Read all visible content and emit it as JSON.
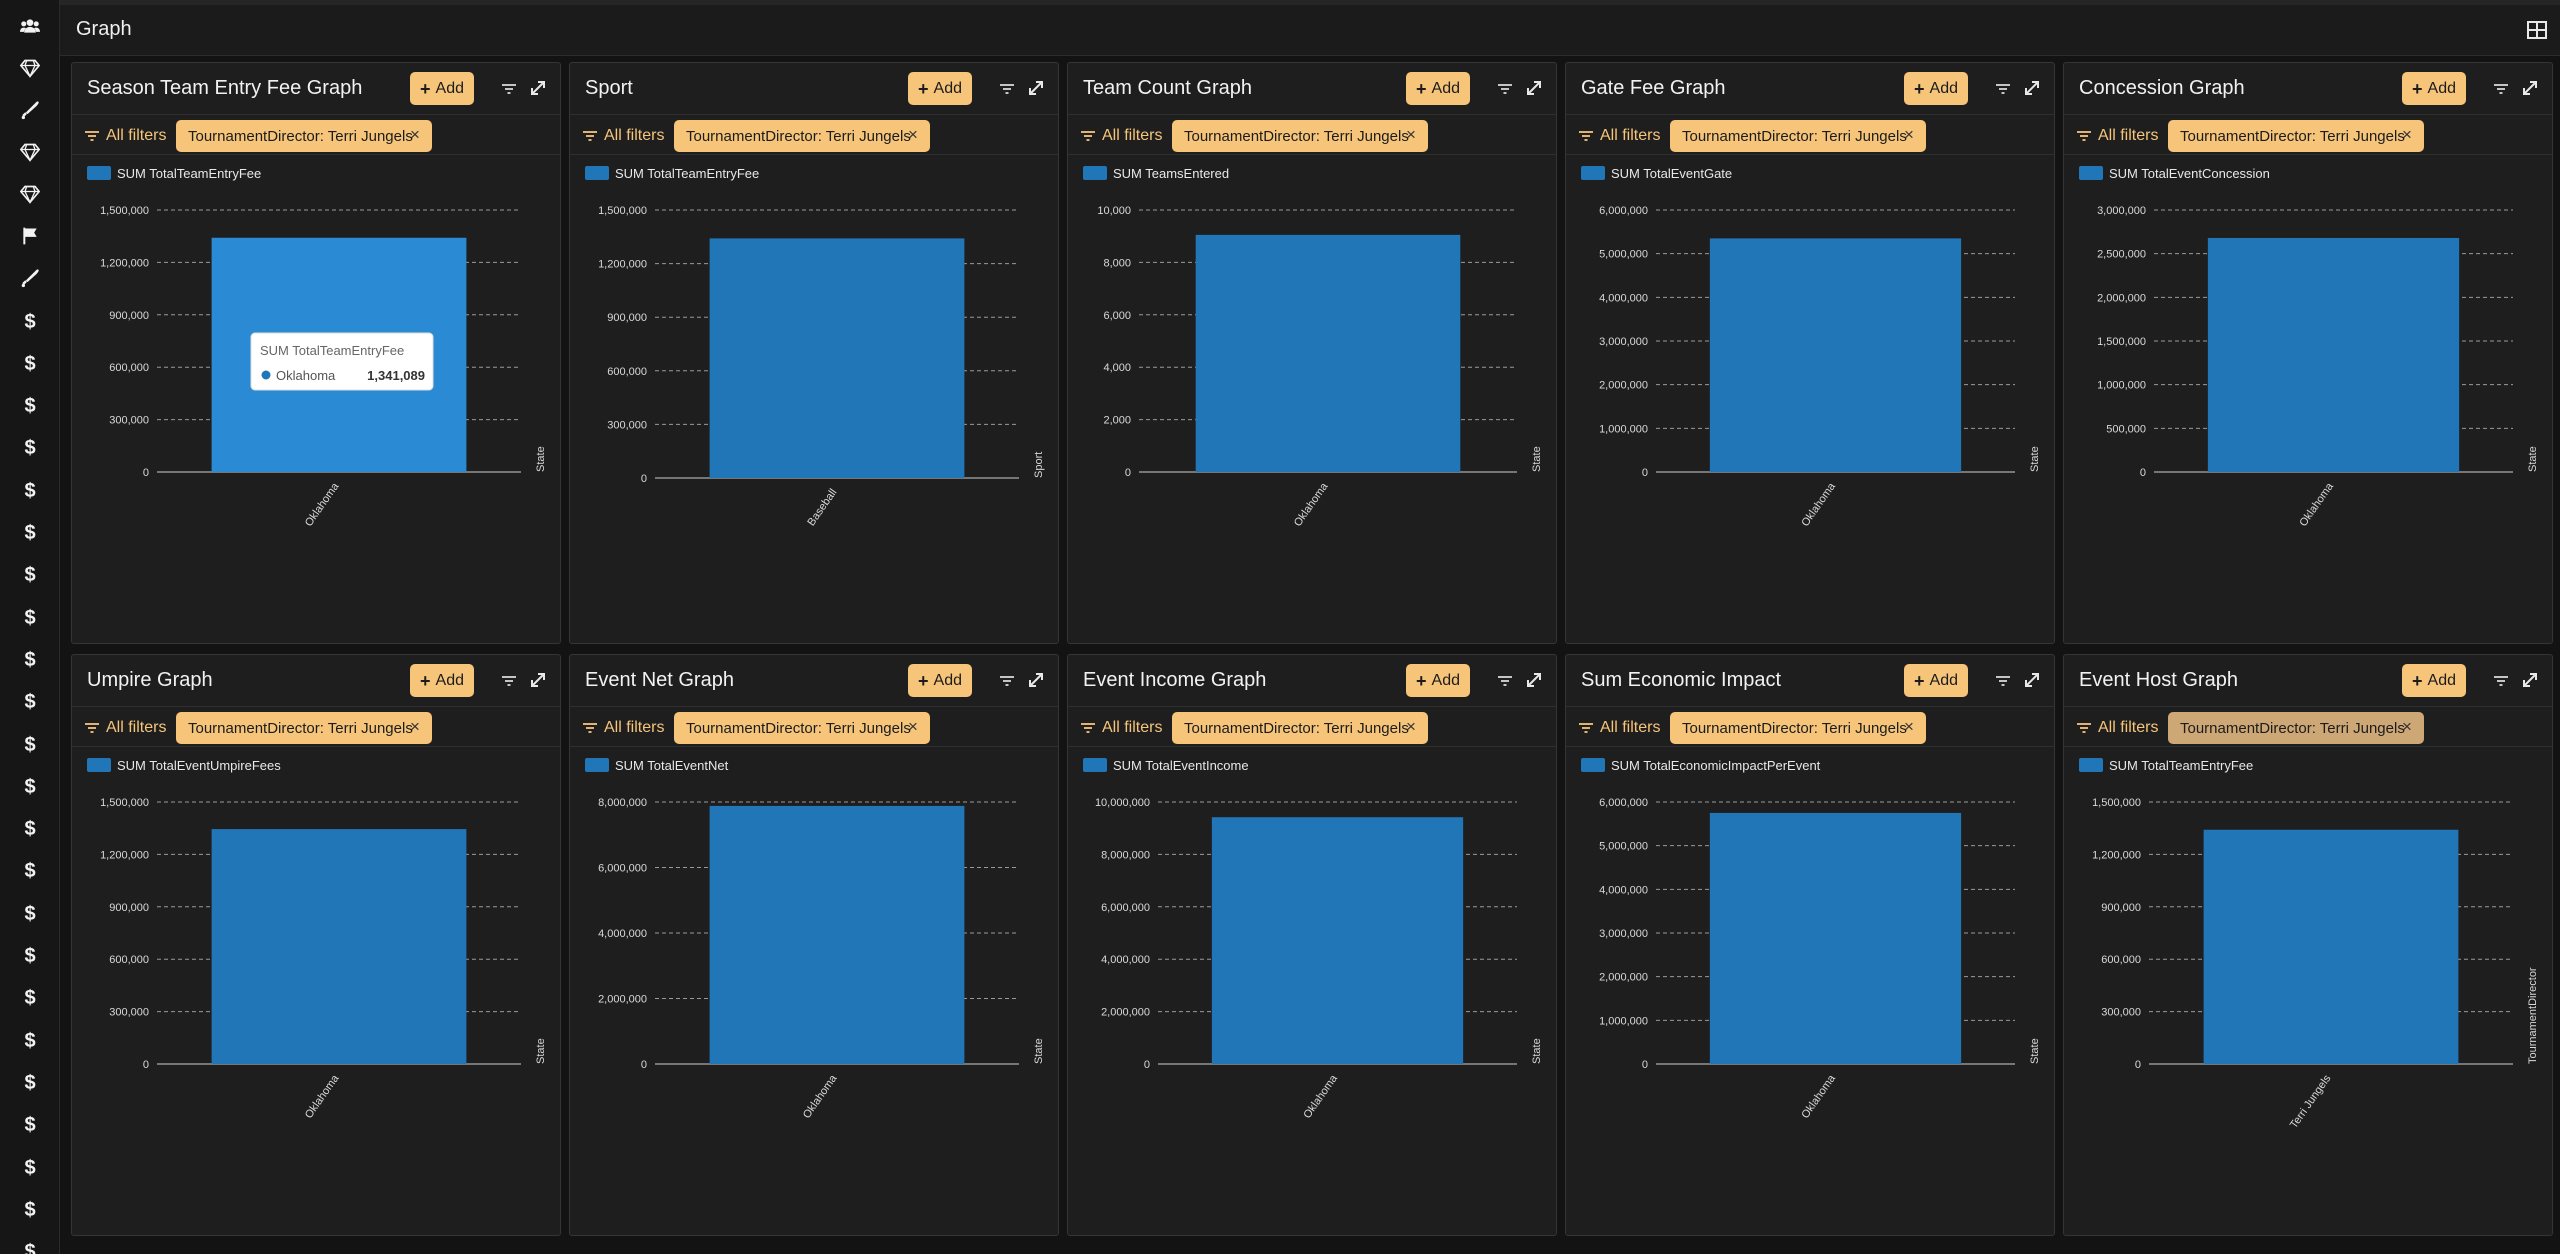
{
  "header": {
    "title": "Graph",
    "layout_icon": "grid-layout-icon"
  },
  "sidebar": {
    "items": [
      {
        "icon": "users-icon"
      },
      {
        "icon": "gem-icon"
      },
      {
        "icon": "baseball-bat-icon"
      },
      {
        "icon": "gem-icon"
      },
      {
        "icon": "gem-icon"
      },
      {
        "icon": "flag-icon"
      },
      {
        "icon": "baseball-bat-icon"
      },
      {
        "icon": "dollar-icon",
        "glyph": "$"
      },
      {
        "icon": "dollar-icon",
        "glyph": "$"
      },
      {
        "icon": "dollar-icon",
        "glyph": "$"
      },
      {
        "icon": "dollar-icon",
        "glyph": "$"
      },
      {
        "icon": "dollar-icon",
        "glyph": "$"
      },
      {
        "icon": "dollar-icon",
        "glyph": "$"
      },
      {
        "icon": "dollar-icon",
        "glyph": "$"
      },
      {
        "icon": "dollar-icon",
        "glyph": "$"
      },
      {
        "icon": "dollar-icon",
        "glyph": "$"
      },
      {
        "icon": "dollar-icon",
        "glyph": "$"
      },
      {
        "icon": "dollar-icon",
        "glyph": "$"
      },
      {
        "icon": "dollar-icon",
        "glyph": "$"
      },
      {
        "icon": "dollar-icon",
        "glyph": "$"
      },
      {
        "icon": "dollar-icon",
        "glyph": "$"
      },
      {
        "icon": "dollar-icon",
        "glyph": "$"
      },
      {
        "icon": "dollar-icon",
        "glyph": "$"
      },
      {
        "icon": "dollar-icon",
        "glyph": "$"
      },
      {
        "icon": "dollar-icon",
        "glyph": "$"
      },
      {
        "icon": "dollar-icon",
        "glyph": "$"
      },
      {
        "icon": "dollar-icon",
        "glyph": "$"
      },
      {
        "icon": "dollar-icon",
        "glyph": "$"
      },
      {
        "icon": "dollar-icon",
        "glyph": "$"
      },
      {
        "icon": "dollar-icon",
        "glyph": "$"
      }
    ]
  },
  "colors": {
    "accent": "#f6c57a",
    "bar": "#2176b8",
    "bar_hover": "#2a8ad4",
    "panel_bg": "#1e1e1e",
    "page_bg": "#131313"
  },
  "common": {
    "add_label": "Add",
    "all_filters_label": "All filters",
    "filter_chip_label": "TournamentDirector: Terri Jungels",
    "close_glyph": "×"
  },
  "panels": [
    {
      "title": "Season Team Entry Fee Graph",
      "tooltip": {
        "title": "SUM TotalTeamEntryFee",
        "label": "Oklahoma",
        "value": "1,341,089"
      },
      "chart_data": {
        "type": "bar",
        "legend": "SUM TotalTeamEntryFee",
        "categories": [
          "Oklahoma"
        ],
        "values": [
          1341089
        ],
        "ylim": [
          0,
          1500000
        ],
        "yticks": [
          0,
          300000,
          600000,
          900000,
          1200000,
          1500000
        ],
        "ytick_labels": [
          "0",
          "300,000",
          "600,000",
          "900,000",
          "1,200,000",
          "1,500,000"
        ],
        "xlabel": "State",
        "grid": true,
        "legend_position": "top-left"
      }
    },
    {
      "title": "Sport",
      "chart_data": {
        "type": "bar",
        "legend": "SUM TotalTeamEntryFee",
        "categories": [
          "Baseball"
        ],
        "values": [
          1341089
        ],
        "ylim": [
          0,
          1500000
        ],
        "yticks": [
          0,
          300000,
          600000,
          900000,
          1200000,
          1500000
        ],
        "ytick_labels": [
          "0",
          "300,000",
          "600,000",
          "900,000",
          "1,200,000",
          "1,500,000"
        ],
        "xlabel": "Sport",
        "grid": true,
        "legend_position": "top-left"
      }
    },
    {
      "title": "Team Count Graph",
      "chart_data": {
        "type": "bar",
        "legend": "SUM TeamsEntered",
        "categories": [
          "Oklahoma"
        ],
        "values": [
          9050
        ],
        "ylim": [
          0,
          10000
        ],
        "yticks": [
          0,
          2000,
          4000,
          6000,
          8000,
          10000
        ],
        "ytick_labels": [
          "0",
          "2,000",
          "4,000",
          "6,000",
          "8,000",
          "10,000"
        ],
        "xlabel": "State",
        "grid": true,
        "legend_position": "top-left"
      }
    },
    {
      "title": "Gate Fee Graph",
      "chart_data": {
        "type": "bar",
        "legend": "SUM TotalEventGate",
        "categories": [
          "Oklahoma"
        ],
        "values": [
          5350000
        ],
        "ylim": [
          0,
          6000000
        ],
        "yticks": [
          0,
          1000000,
          2000000,
          3000000,
          4000000,
          5000000,
          6000000
        ],
        "ytick_labels": [
          "0",
          "1,000,000",
          "2,000,000",
          "3,000,000",
          "4,000,000",
          "5,000,000",
          "6,000,000"
        ],
        "xlabel": "State",
        "grid": true,
        "legend_position": "top-left"
      }
    },
    {
      "title": "Concession Graph",
      "chart_data": {
        "type": "bar",
        "legend": "SUM TotalEventConcession",
        "categories": [
          "Oklahoma"
        ],
        "values": [
          2680000
        ],
        "ylim": [
          0,
          3000000
        ],
        "yticks": [
          0,
          500000,
          1000000,
          1500000,
          2000000,
          2500000,
          3000000
        ],
        "ytick_labels": [
          "0",
          "500,000",
          "1,000,000",
          "1,500,000",
          "2,000,000",
          "2,500,000",
          "3,000,000"
        ],
        "xlabel": "State",
        "grid": true,
        "legend_position": "top-left"
      }
    },
    {
      "title": "Umpire Graph",
      "chart_data": {
        "type": "bar",
        "legend": "SUM TotalEventUmpireFees",
        "categories": [
          "Oklahoma"
        ],
        "values": [
          1345000
        ],
        "ylim": [
          0,
          1500000
        ],
        "yticks": [
          0,
          300000,
          600000,
          900000,
          1200000,
          1500000
        ],
        "ytick_labels": [
          "0",
          "300,000",
          "600,000",
          "900,000",
          "1,200,000",
          "1,500,000"
        ],
        "xlabel": "State",
        "grid": true,
        "legend_position": "top-left"
      }
    },
    {
      "title": "Event Net Graph",
      "chart_data": {
        "type": "bar",
        "legend": "SUM TotalEventNet",
        "categories": [
          "Oklahoma"
        ],
        "values": [
          7880000
        ],
        "ylim": [
          0,
          8000000
        ],
        "yticks": [
          0,
          2000000,
          4000000,
          6000000,
          8000000
        ],
        "ytick_labels": [
          "0",
          "2,000,000",
          "4,000,000",
          "6,000,000",
          "8,000,000"
        ],
        "xlabel": "State",
        "grid": true,
        "legend_position": "top-left"
      }
    },
    {
      "title": "Event Income Graph",
      "chart_data": {
        "type": "bar",
        "legend": "SUM TotalEventIncome",
        "categories": [
          "Oklahoma"
        ],
        "values": [
          9420000
        ],
        "ylim": [
          0,
          10000000
        ],
        "yticks": [
          0,
          2000000,
          4000000,
          6000000,
          8000000,
          10000000
        ],
        "ytick_labels": [
          "0",
          "2,000,000",
          "4,000,000",
          "6,000,000",
          "8,000,000",
          "10,000,000"
        ],
        "xlabel": "State",
        "grid": true,
        "legend_position": "top-left"
      }
    },
    {
      "title": "Sum Economic Impact",
      "chart_data": {
        "type": "bar",
        "legend": "SUM TotalEconomicImpactPerEvent",
        "categories": [
          "Oklahoma"
        ],
        "values": [
          5750000
        ],
        "ylim": [
          0,
          6000000
        ],
        "yticks": [
          0,
          1000000,
          2000000,
          3000000,
          4000000,
          5000000,
          6000000
        ],
        "ytick_labels": [
          "0",
          "1,000,000",
          "2,000,000",
          "3,000,000",
          "4,000,000",
          "5,000,000",
          "6,000,000"
        ],
        "xlabel": "State",
        "grid": true,
        "legend_position": "top-left"
      }
    },
    {
      "title": "Event Host Graph",
      "chip_dim": true,
      "chart_data": {
        "type": "bar",
        "legend": "SUM TotalTeamEntryFee",
        "categories": [
          "Terri Jungels"
        ],
        "values": [
          1341089
        ],
        "ylim": [
          0,
          1500000
        ],
        "yticks": [
          0,
          300000,
          600000,
          900000,
          1200000,
          1500000
        ],
        "ytick_labels": [
          "0",
          "300,000",
          "600,000",
          "900,000",
          "1,200,000",
          "1,500,000"
        ],
        "xlabel": "TournamentDirector",
        "grid": true,
        "legend_position": "top-left"
      }
    }
  ]
}
